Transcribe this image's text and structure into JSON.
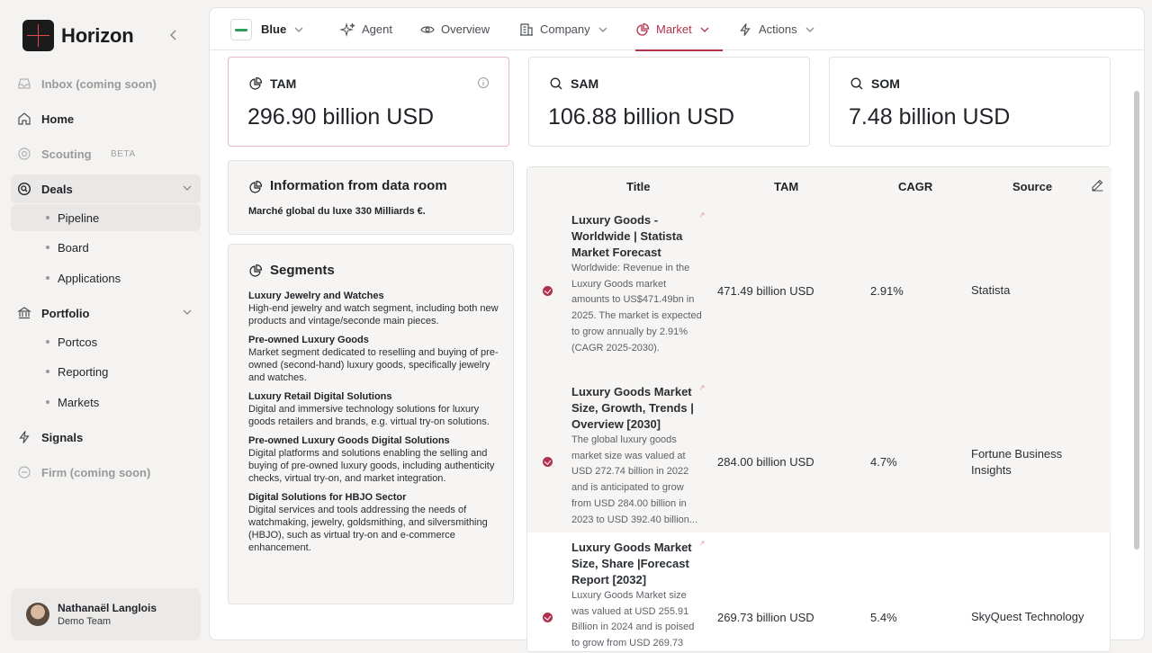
{
  "app": {
    "name": "Horizon"
  },
  "sidebar": {
    "items": [
      {
        "label": "Inbox (coming soon)"
      },
      {
        "label": "Home"
      },
      {
        "label": "Scouting",
        "badge": "BETA"
      },
      {
        "label": "Deals"
      },
      {
        "label": "Portfolio"
      },
      {
        "label": "Signals"
      },
      {
        "label": "Firm (coming soon)"
      }
    ],
    "deals_sub": [
      {
        "label": "Pipeline"
      },
      {
        "label": "Board"
      },
      {
        "label": "Applications"
      }
    ],
    "portfolio_sub": [
      {
        "label": "Portcos"
      },
      {
        "label": "Reporting"
      },
      {
        "label": "Markets"
      }
    ],
    "user": {
      "name": "Nathanaël Langlois",
      "team": "Demo Team"
    }
  },
  "topbar": {
    "company": "Blue",
    "tabs": [
      {
        "label": "Agent"
      },
      {
        "label": "Overview"
      },
      {
        "label": "Company"
      },
      {
        "label": "Market"
      },
      {
        "label": "Actions"
      }
    ],
    "active_tab": "Market"
  },
  "metrics": [
    {
      "label": "TAM",
      "value": "296.90 billion USD"
    },
    {
      "label": "SAM",
      "value": "106.88 billion USD"
    },
    {
      "label": "SOM",
      "value": "7.48 billion USD"
    }
  ],
  "data_room": {
    "title": "Information from data room",
    "text": "Marché global du luxe 330 Milliards €."
  },
  "segments": {
    "title": "Segments",
    "items": [
      {
        "title": "Luxury Jewelry and Watches",
        "desc": "High-end jewelry and watch segment, including both new products and vintage/seconde main pieces."
      },
      {
        "title": "Pre-owned Luxury Goods",
        "desc": "Market segment dedicated to reselling and buying of pre-owned (second-hand) luxury goods, specifically jewelry and watches."
      },
      {
        "title": "Luxury Retail Digital Solutions",
        "desc": "Digital and immersive technology solutions for luxury goods retailers and brands, e.g. virtual try-on solutions."
      },
      {
        "title": "Pre-owned Luxury Goods Digital Solutions",
        "desc": "Digital platforms and solutions enabling the selling and buying of pre-owned luxury goods, including authenticity checks, virtual try-on, and market integration."
      },
      {
        "title": "Digital Solutions for HBJO Sector",
        "desc": "Digital services and tools addressing the needs of watchmaking, jewelry, goldsmithing, and silversmithing (HBJO), such as virtual try-on and e-commerce enhancement."
      }
    ]
  },
  "table": {
    "headers": [
      "Title",
      "TAM",
      "CAGR",
      "Source"
    ],
    "rows": [
      {
        "title": "Luxury Goods - Worldwide | Statista Market Forecast",
        "desc": "Worldwide: Revenue in the Luxury Goods market amounts to US$471.49bn in 2025. The market is expected to grow annually by 2.91% (CAGR 2025-2030).",
        "tam": "471.49 billion USD",
        "cagr": "2.91%",
        "source": "Statista"
      },
      {
        "title": "Luxury Goods Market Size, Growth, Trends | Overview [2030]",
        "desc": "The global luxury goods market size was valued at USD 272.74 billion in 2022 and is anticipated to grow from USD 284.00 billion in 2023 to USD 392.40 billion...",
        "tam": "284.00 billion USD",
        "cagr": "4.7%",
        "source": "Fortune Business Insights"
      },
      {
        "title": "Luxury Goods Market Size, Share |Forecast Report [2032]",
        "desc": "Luxury Goods Market size was valued at USD 255.91 Billion in 2024 and is poised to grow from USD 269.73",
        "tam": "269.73 billion USD",
        "cagr": "5.4%",
        "source": "SkyQuest Technology"
      }
    ]
  }
}
